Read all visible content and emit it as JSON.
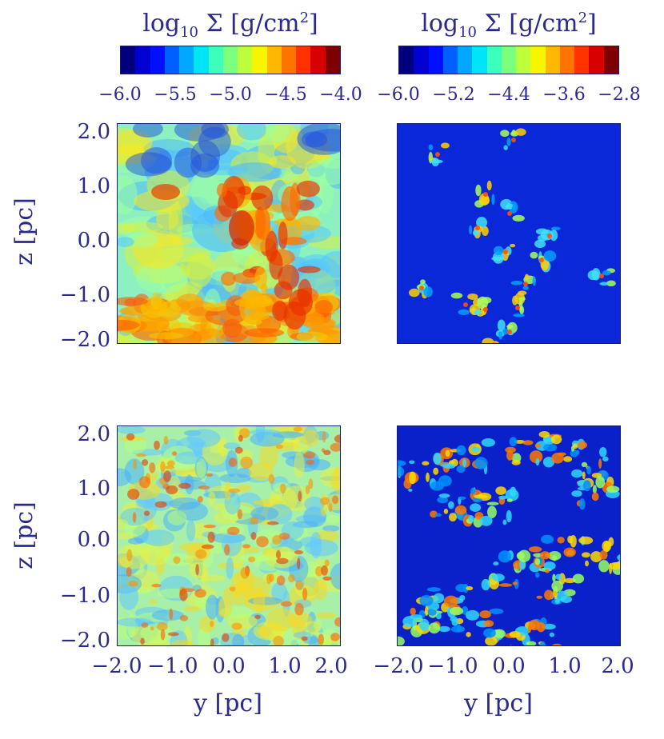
{
  "colorbars": [
    {
      "title_base": "log",
      "title_sub": "10",
      "title_rest": " Σ [g/cm",
      "title_sup": "2",
      "title_end": "]",
      "ticks": [
        "−6.0",
        "−5.5",
        "−5.0",
        "−4.5",
        "−4.0"
      ]
    },
    {
      "title_base": "log",
      "title_sub": "10",
      "title_rest": " Σ [g/cm",
      "title_sup": "2",
      "title_end": "]",
      "ticks": [
        "−6.0",
        "−5.2",
        "−4.4",
        "−3.6",
        "−2.8"
      ]
    }
  ],
  "y_axis": {
    "title": "z [pc]",
    "ticks": [
      "2.0",
      "1.0",
      "0.0",
      "−1.0",
      "−2.0"
    ]
  },
  "x_axis": {
    "title": "y [pc]",
    "ticks_left": [
      "−2.0",
      "−1.0",
      "0.0",
      "1.0",
      "2.0"
    ],
    "ticks_right": [
      "−2.0",
      "−1.0",
      "0.0",
      "1.0",
      "2.0"
    ]
  },
  "colormap": [
    "#00007f",
    "#0000d0",
    "#0010ff",
    "#0060ff",
    "#00a8ff",
    "#00e4f8",
    "#3cffbc",
    "#7cff7c",
    "#bcff3c",
    "#f8f500",
    "#ffb800",
    "#ff7400",
    "#ff3200",
    "#d80000",
    "#7f0000"
  ]
}
